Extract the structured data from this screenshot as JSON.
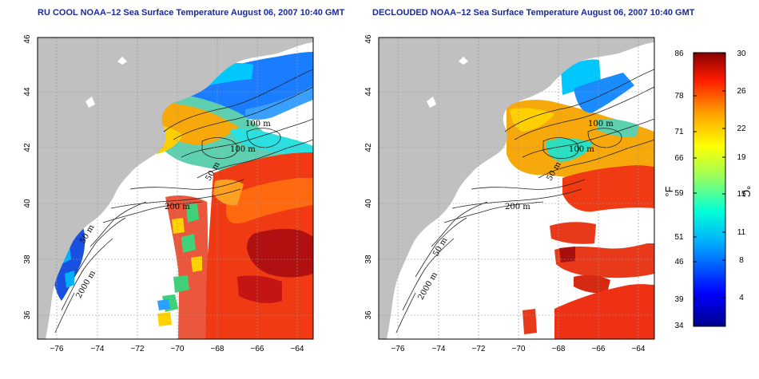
{
  "panels": [
    {
      "title": "RU COOL NOAA–12 Sea Surface Temperature August 06, 2007 10:40 GMT",
      "contour_labels": [
        "100 m",
        "100 m",
        "50 m",
        "200 m",
        "50 m",
        "2000 m"
      ]
    },
    {
      "title": "DECLOUDED NOAA–12 Sea Surface Temperature August 06, 2007 10:40 GMT",
      "contour_labels": [
        "100 m",
        "100 m",
        "50 m",
        "200 m",
        "50 m",
        "2000 m"
      ]
    }
  ],
  "axes": {
    "x_ticks": [
      "−76",
      "−74",
      "−72",
      "−70",
      "−68",
      "−66",
      "−64"
    ],
    "y_ticks": [
      "36",
      "38",
      "40",
      "42",
      "44",
      "46"
    ]
  },
  "colorbar": {
    "fahrenheit_ticks": [
      "86",
      "78",
      "71",
      "66",
      "59",
      "51",
      "46",
      "39",
      "34"
    ],
    "celsius_ticks": [
      "30",
      "26",
      "22",
      "19",
      "15",
      "11",
      "8",
      "4"
    ],
    "fahrenheit_label": "°F",
    "celsius_label": "°C"
  },
  "colors": {
    "land": "#c0c0c0",
    "title": "#1a2a9c",
    "cold": "#0a1fa8",
    "warm": "#c40f0f"
  }
}
